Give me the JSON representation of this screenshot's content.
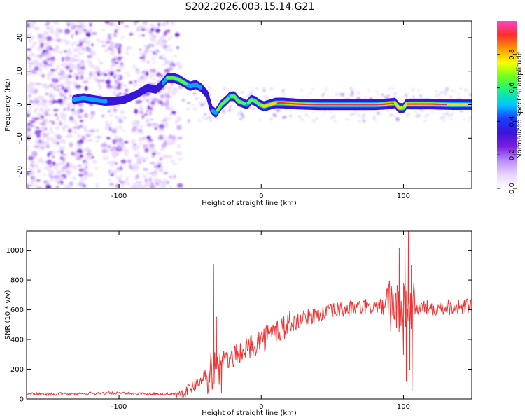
{
  "figure": {
    "title": "S202.2026.003.15.14.G21"
  },
  "colormap": {
    "stops": [
      "#ffffff",
      "#e9d2ff",
      "#b98cff",
      "#7a1fe0",
      "#3a14d8",
      "#1a3cff",
      "#00c8ff",
      "#18f08a",
      "#70ff1a",
      "#f7ff00",
      "#ff9a00",
      "#ff2c2c",
      "#ff44c8"
    ]
  },
  "chart_data": [
    {
      "type": "heatmap",
      "title": "S202.2026.003.15.14.G21",
      "xlabel": "Height of straight line (km)",
      "ylabel": "Frequency (Hz)",
      "xlim": [
        -165,
        148
      ],
      "ylim": [
        -25,
        25
      ],
      "xticks": [
        -100,
        0,
        100
      ],
      "xtick_labels": [
        "-100",
        "0",
        "100"
      ],
      "yticks": [
        -20,
        -10,
        0,
        10,
        20
      ],
      "ytick_labels": [
        "-20",
        "-10",
        "0",
        "10",
        "20"
      ],
      "colorbar": {
        "label": "Normalized spectral amplitude",
        "range": [
          0,
          1
        ],
        "ticks": [
          0.0,
          0.2,
          0.4,
          0.6,
          0.8
        ],
        "tick_labels": [
          "0.0",
          "0.2",
          "0.4",
          "0.6",
          "0.8"
        ]
      },
      "ridge": {
        "x": [
          -132,
          -125,
          -118,
          -110,
          -104,
          -96,
          -88,
          -80,
          -74,
          -70,
          -66,
          -62,
          -58,
          -54,
          -50,
          -46,
          -42,
          -38,
          -35,
          -32,
          -28,
          -24,
          -22,
          -19,
          -16,
          -13,
          -10,
          -7,
          -4,
          -1,
          2,
          6,
          10,
          15,
          25,
          40,
          60,
          80,
          88,
          94,
          97,
          100,
          102,
          105,
          110,
          120,
          135,
          148
        ],
        "freq": [
          1.5,
          2,
          1.5,
          1,
          1,
          1.5,
          3,
          5,
          4.5,
          6,
          8,
          8,
          7.5,
          6.5,
          5.5,
          6,
          5,
          3,
          -1.5,
          -2.5,
          0,
          1.5,
          2.5,
          2.5,
          1,
          0.5,
          0,
          1.5,
          1,
          0,
          -0.5,
          0,
          0.5,
          0.5,
          0.2,
          0,
          0,
          0,
          0.2,
          0.5,
          -1,
          -1,
          0.2,
          0.2,
          0.2,
          0.2,
          0,
          0
        ],
        "amp": [
          0.45,
          0.55,
          0.5,
          0.45,
          0.3,
          0.3,
          0.3,
          0.35,
          0.35,
          0.4,
          0.6,
          0.65,
          0.7,
          0.6,
          0.55,
          0.55,
          0.4,
          0.35,
          0.4,
          0.55,
          0.65,
          0.6,
          0.55,
          0.7,
          0.7,
          0.6,
          0.55,
          0.65,
          0.65,
          0.7,
          0.75,
          0.8,
          0.85,
          0.88,
          0.9,
          0.92,
          0.92,
          0.92,
          0.9,
          0.85,
          0.75,
          0.7,
          0.85,
          0.9,
          0.9,
          0.88,
          0.85,
          0.8
        ]
      }
    },
    {
      "type": "line",
      "title": "",
      "xlabel": "Height of straight line (km)",
      "ylabel": "SNR (10 * v/v)",
      "xlim": [
        -165,
        148
      ],
      "ylim": [
        0,
        1130
      ],
      "xticks": [
        -100,
        0,
        100
      ],
      "xtick_labels": [
        "-100",
        "0",
        "100"
      ],
      "yticks": [
        0,
        200,
        400,
        600,
        800,
        1000
      ],
      "ytick_labels": [
        "0",
        "200",
        "400",
        "600",
        "800",
        "1000"
      ],
      "series": [
        {
          "name": "SNR",
          "color": "#ee3333",
          "trend": {
            "x": [
              -165,
              -150,
              -130,
              -110,
              -90,
              -75,
              -60,
              -55,
              -50,
              -45,
              -40,
              -35,
              -30,
              -25,
              -20,
              -15,
              -10,
              -5,
              0,
              5,
              10,
              15,
              20,
              25,
              30,
              35,
              40,
              50,
              60,
              70,
              80,
              90,
              95,
              100,
              105,
              110,
              120,
              130,
              140,
              148
            ],
            "y": [
              35,
              32,
              35,
              40,
              35,
              35,
              35,
              45,
              70,
              120,
              160,
              190,
              220,
              250,
              280,
              310,
              340,
              370,
              400,
              420,
              450,
              480,
              500,
              520,
              540,
              555,
              570,
              590,
              605,
              615,
              620,
              625,
              615,
              600,
              600,
              610,
              615,
              620,
              620,
              625
            ]
          },
          "spikes": {
            "x": [
              -33.5,
              -31.5,
              -28,
              97,
              100,
              101,
              102,
              103.5,
              104.5,
              105.5,
              106
            ],
            "y": [
              905,
              550,
              40,
              1010,
              300,
              1050,
              120,
              1130,
              200,
              900,
              60
            ]
          }
        }
      ]
    }
  ]
}
